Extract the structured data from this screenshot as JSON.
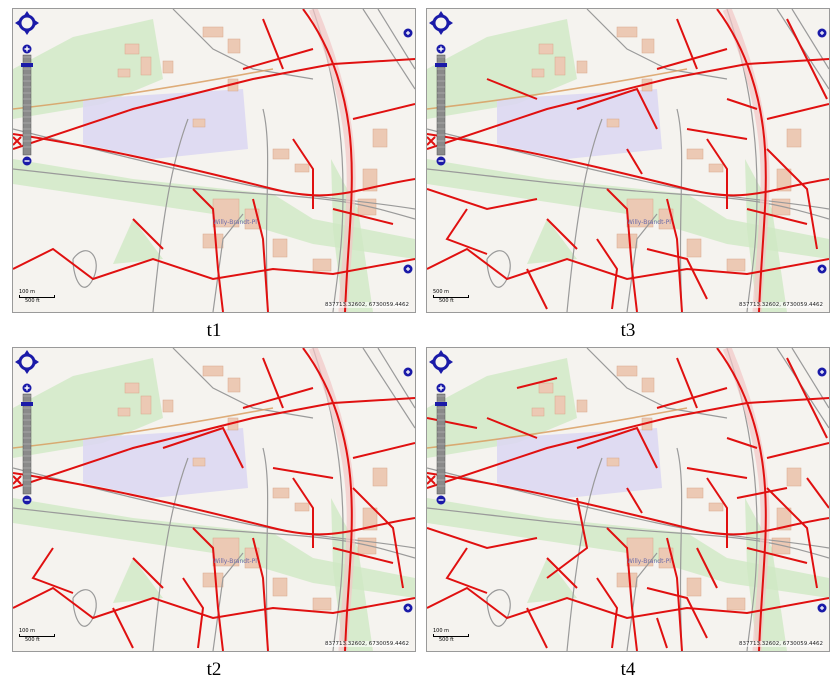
{
  "panels": [
    {
      "caption": "t1",
      "scale_top": "100 m",
      "scale_bottom": "500 ft",
      "coords": "837713.32602, 6730059.4462",
      "place_label": "Willy-Brandt-Pl",
      "density": 1
    },
    {
      "caption": "t3",
      "scale_top": "500 m",
      "scale_bottom": "500 ft",
      "coords": "837713.32602, 6730059.4462",
      "place_label": "Willy-Brandt-Pl",
      "density": 3
    },
    {
      "caption": "t2",
      "scale_top": "100 m",
      "scale_bottom": "500 ft",
      "coords": "837713.32602, 6730059.4462",
      "place_label": "Willy-Brandt-Pl",
      "density": 2
    },
    {
      "caption": "t4",
      "scale_top": "100 m",
      "scale_bottom": "500 ft",
      "coords": "837713.32602, 6730059.4462",
      "place_label": "Willy-Brandt-Pl",
      "density": 4
    }
  ],
  "colors": {
    "route": "#e01010",
    "green": "#cfe8c4",
    "water": "#ddd8f2",
    "building": "#ecc9b4",
    "ctrl": "#1a1aa8"
  },
  "icons": {
    "pan": "pan-compass-icon",
    "zoom_in": "zoom-in-icon",
    "zoom_out": "zoom-out-icon",
    "layer": "layer-switcher-icon"
  }
}
